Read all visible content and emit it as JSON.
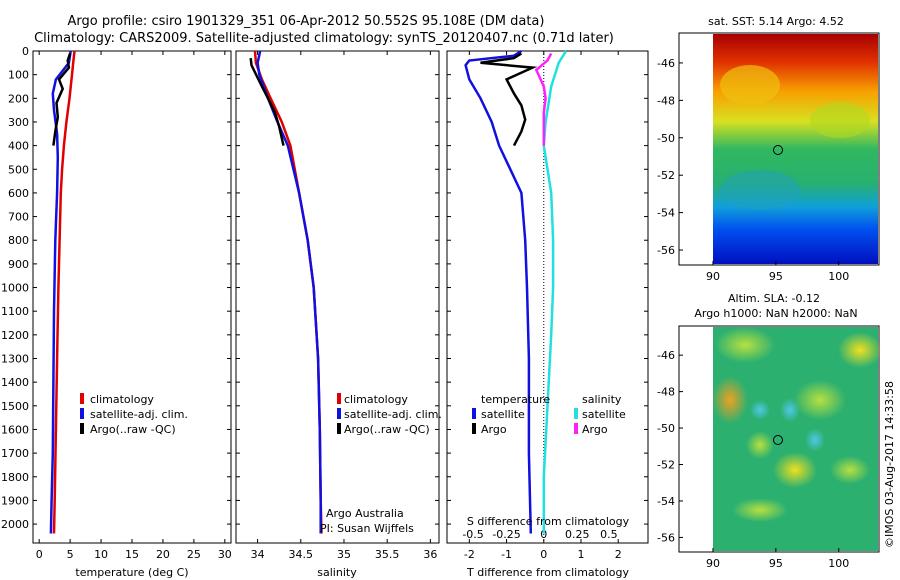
{
  "title_line1": "Argo profile: csiro 1901329_351 06-Apr-2012 50.552S 95.108E (DM data)",
  "title_line2": "Climatology: CARS2009. Satellite-adjusted climatology: synTS_20120407.nc (0.71d later)",
  "colors": {
    "climatology": "#e00000",
    "satellite": "#1010e0",
    "argo": "#000000",
    "sal_satellite": "#20e0e0",
    "sal_argo": "#ff20ff"
  },
  "chart_data": [
    {
      "type": "line",
      "xlabel": "temperature (deg C)",
      "ylabel": "",
      "xlim": [
        -1,
        31
      ],
      "ylim": [
        2080,
        0
      ],
      "xticks": [
        0,
        5,
        10,
        15,
        20,
        25,
        30
      ],
      "yticks": [
        0,
        100,
        200,
        300,
        400,
        500,
        600,
        700,
        800,
        900,
        1000,
        1100,
        1200,
        1300,
        1400,
        1500,
        1600,
        1700,
        1800,
        1900,
        2000
      ],
      "legend": [
        "climatology",
        "satellite-adj. clim.",
        "Argo(..raw -QC)"
      ],
      "series": [
        {
          "name": "climatology",
          "color": "#e00000",
          "points": [
            [
              5.7,
              0
            ],
            [
              5.5,
              50
            ],
            [
              5.3,
              100
            ],
            [
              4.9,
              200
            ],
            [
              4.4,
              300
            ],
            [
              4.0,
              400
            ],
            [
              3.7,
              500
            ],
            [
              3.5,
              600
            ],
            [
              3.3,
              800
            ],
            [
              3.1,
              1000
            ],
            [
              2.9,
              1300
            ],
            [
              2.7,
              1600
            ],
            [
              2.5,
              1900
            ],
            [
              2.4,
              2040
            ]
          ]
        },
        {
          "name": "satellite-adj. clim.",
          "color": "#1010e0",
          "points": [
            [
              5.1,
              0
            ],
            [
              4.8,
              50
            ],
            [
              2.7,
              120
            ],
            [
              2.2,
              180
            ],
            [
              2.4,
              250
            ],
            [
              2.9,
              350
            ],
            [
              3.0,
              450
            ],
            [
              2.9,
              600
            ],
            [
              2.6,
              800
            ],
            [
              2.4,
              1100
            ],
            [
              2.3,
              1400
            ],
            [
              2.2,
              1700
            ],
            [
              2.0,
              1900
            ],
            [
              1.9,
              2040
            ]
          ]
        },
        {
          "name": "Argo(..raw -QC)",
          "color": "#000000",
          "points": [
            [
              5.0,
              10
            ],
            [
              4.6,
              40
            ],
            [
              4.8,
              70
            ],
            [
              3.2,
              120
            ],
            [
              3.8,
              160
            ],
            [
              2.8,
              220
            ],
            [
              3.0,
              280
            ],
            [
              2.6,
              340
            ],
            [
              2.3,
              400
            ]
          ]
        }
      ]
    },
    {
      "type": "line",
      "xlabel": "salinity",
      "ylabel": "",
      "xlim": [
        33.75,
        36.1
      ],
      "ylim": [
        2080,
        0
      ],
      "xticks": [
        34,
        34.5,
        35,
        35.5,
        36
      ],
      "yticks": [],
      "legend": [
        "climatology",
        "satellite-adj. clim.",
        "Argo(..raw -QC)"
      ],
      "footer": [
        "Argo Australia",
        "PI: Susan Wijffels"
      ],
      "series": [
        {
          "name": "climatology",
          "color": "#e00000",
          "points": [
            [
              33.97,
              0
            ],
            [
              33.98,
              50
            ],
            [
              34.05,
              120
            ],
            [
              34.15,
              200
            ],
            [
              34.28,
              300
            ],
            [
              34.38,
              400
            ],
            [
              34.48,
              600
            ],
            [
              34.58,
              800
            ],
            [
              34.65,
              1000
            ],
            [
              34.7,
              1300
            ],
            [
              34.72,
              1600
            ],
            [
              34.73,
              1900
            ],
            [
              34.74,
              2040
            ]
          ]
        },
        {
          "name": "satellite-adj. clim.",
          "color": "#1010e0",
          "points": [
            [
              34.03,
              0
            ],
            [
              34.0,
              50
            ],
            [
              34.02,
              100
            ],
            [
              34.12,
              200
            ],
            [
              34.23,
              300
            ],
            [
              34.35,
              400
            ],
            [
              34.48,
              600
            ],
            [
              34.58,
              800
            ],
            [
              34.65,
              1000
            ],
            [
              34.7,
              1300
            ],
            [
              34.72,
              1600
            ],
            [
              34.73,
              1900
            ],
            [
              34.73,
              2040
            ]
          ]
        },
        {
          "name": "Argo(..raw -QC)",
          "color": "#000000",
          "points": [
            [
              33.92,
              30
            ],
            [
              33.93,
              60
            ],
            [
              34.05,
              150
            ],
            [
              34.12,
              200
            ],
            [
              34.2,
              260
            ],
            [
              34.25,
              320
            ],
            [
              34.3,
              400
            ]
          ]
        }
      ]
    },
    {
      "type": "line",
      "xlabel": "T difference from climatology",
      "top_label": "S difference from climatology",
      "xlim": [
        -2.6,
        2.8
      ],
      "ylim": [
        2080,
        0
      ],
      "xticks": [
        -2,
        -1,
        0,
        1,
        2
      ],
      "sticks": [
        {
          "label": "-0.5",
          "x": -1.9
        },
        {
          "label": "-0.25",
          "x": -1.0
        },
        {
          "label": "0",
          "x": 0
        },
        {
          "label": "0.25",
          "x": 0.9
        },
        {
          "label": "0.5",
          "x": 1.75
        }
      ],
      "legend_left_title": "temperature",
      "legend_right_title": "salinity",
      "legend_left": [
        "satellite",
        "Argo"
      ],
      "legend_right": [
        "satellite",
        "Argo"
      ],
      "series": [
        {
          "name": "temperature satellite",
          "color": "#1010e0",
          "points": [
            [
              -0.6,
              0
            ],
            [
              -0.8,
              20
            ],
            [
              -2.0,
              40
            ],
            [
              -2.1,
              60
            ],
            [
              -2.0,
              120
            ],
            [
              -1.7,
              200
            ],
            [
              -1.4,
              300
            ],
            [
              -1.2,
              400
            ],
            [
              -0.9,
              500
            ],
            [
              -0.6,
              600
            ],
            [
              -0.5,
              800
            ],
            [
              -0.45,
              1000
            ],
            [
              -0.4,
              1300
            ],
            [
              -0.4,
              1700
            ],
            [
              -0.35,
              2040
            ]
          ]
        },
        {
          "name": "temperature Argo",
          "color": "#000000",
          "points": [
            [
              -0.6,
              10
            ],
            [
              -0.8,
              30
            ],
            [
              -1.7,
              50
            ],
            [
              -0.3,
              70
            ],
            [
              -1.0,
              120
            ],
            [
              -0.8,
              180
            ],
            [
              -0.6,
              230
            ],
            [
              -0.5,
              290
            ],
            [
              -0.6,
              340
            ],
            [
              -0.8,
              400
            ]
          ]
        },
        {
          "name": "salinity satellite",
          "color": "#20e0e0",
          "points": [
            [
              0.6,
              0
            ],
            [
              0.4,
              50
            ],
            [
              0.2,
              150
            ],
            [
              0.05,
              300
            ],
            [
              0.0,
              400
            ],
            [
              0.1,
              500
            ],
            [
              0.2,
              600
            ],
            [
              0.25,
              800
            ],
            [
              0.25,
              1000
            ],
            [
              0.2,
              1200
            ],
            [
              0.1,
              1500
            ],
            [
              0.0,
              1800
            ],
            [
              0.0,
              2040
            ]
          ]
        },
        {
          "name": "salinity Argo",
          "color": "#ff20ff",
          "points": [
            [
              0.2,
              10
            ],
            [
              0.1,
              40
            ],
            [
              -0.2,
              80
            ],
            [
              0.0,
              150
            ],
            [
              0.05,
              200
            ],
            [
              0.0,
              260
            ],
            [
              0.0,
              330
            ],
            [
              0.0,
              400
            ]
          ]
        }
      ]
    },
    {
      "type": "heatmap",
      "title": "sat. SST: 5.14 Argo: 4.52",
      "xticks": [
        90,
        95,
        100
      ],
      "yticks": [
        -46,
        -48,
        -50,
        -52,
        -54,
        -56
      ]
    },
    {
      "type": "heatmap",
      "title_line1": "Altim. SLA: -0.12",
      "title_line2": "Argo h1000: NaN h2000: NaN",
      "xticks": [
        90,
        95,
        100
      ],
      "yticks": [
        -46,
        -48,
        -50,
        -52,
        -54,
        -56
      ]
    }
  ],
  "side_credit": "©IMOS 03-Aug-2017 14:33:58"
}
